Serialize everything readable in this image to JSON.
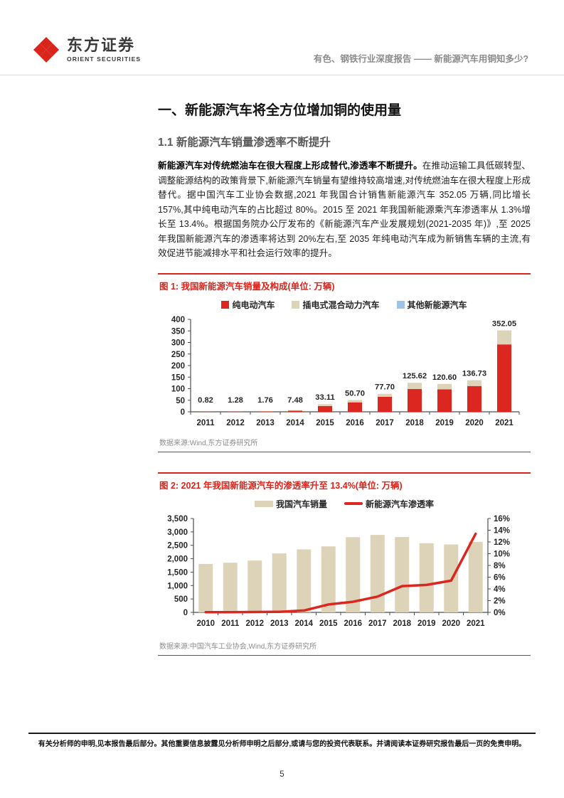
{
  "header": {
    "logo_cn": "东方证券",
    "logo_en": "ORIENT SECURITIES",
    "report_label": "有色、钢铁行业深度报告 —— 新能源汽车用铜知多少?"
  },
  "content": {
    "section_title": "一、新能源汽车将全方位增加铜的使用量",
    "subsection_title": "1.1 新能源汽车销量渗透率不断提升",
    "paragraph_lead": "新能源汽车对传统燃油车在很大程度上形成替代,渗透率不断提升。",
    "paragraph_rest": "在推动运输工具低碳转型、调整能源结构的政策背景下,新能源汽车销量有望维持较高增速,对传统燃油车在很大程度上形成替代。据中国汽车工业协会数据,2021 年我国合计销售新能源汽车 352.05 万辆,同比增长 157%,其中纯电动汽车的占比超过 80%。2015 至 2021 年我国新能源乘汽车渗透率从 1.3%增长至 13.4%。根据国务院办公厅发布的《新能源汽车产业发展规划(2021-2035 年)》,至 2025 年我国新能源汽车的渗透率将达到 20%左右,至 2035 年纯电动汽车成为新销售车辆的主流,有效促进节能减排水平和社会运行效率的提升。"
  },
  "figure1": {
    "title": "图 1: 我国新能源汽车销量及构成(单位: 万辆)",
    "source": "数据来源:Wind,东方证券研究所"
  },
  "figure2": {
    "title": "图 2: 2021 年我国新能源汽车的渗透率升至 13.4%(单位: 万辆)",
    "source": "数据来源:中国汽车工业协会,Wind,东方证券研究所"
  },
  "footer": {
    "disclaimer": "有关分析师的申明,见本报告最后部分。其他重要信息披露见分析师申明之后部分,或请与您的投资代表联系。并请阅读本证券研究报告最后一页的免责申明。",
    "page_number": "5"
  },
  "colors": {
    "accent_red": "#d9251c",
    "bar_red": "#dc2620",
    "bar_tan": "#ddd3b8",
    "bar_blue": "#9dc3e6"
  },
  "chart_data": [
    {
      "type": "bar",
      "stacked": true,
      "title": "图 1: 我国新能源汽车销量及构成(单位: 万辆)",
      "unit": "万辆",
      "categories": [
        "2011",
        "2012",
        "2013",
        "2014",
        "2015",
        "2016",
        "2017",
        "2018",
        "2019",
        "2020",
        "2021"
      ],
      "series": [
        {
          "name": "纯电动汽车",
          "color": "#dc2620",
          "values": [
            0.6,
            1.0,
            1.45,
            4.5,
            24.75,
            40.9,
            65.2,
            98.4,
            97.2,
            111.5,
            291.6
          ]
        },
        {
          "name": "插电式混合动力汽车",
          "color": "#ddd3b8",
          "values": [
            0.22,
            0.28,
            0.31,
            2.98,
            8.36,
            9.8,
            12.5,
            27.22,
            23.4,
            25.23,
            60.45
          ]
        },
        {
          "name": "其他新能源汽车",
          "color": "#9dc3e6",
          "values": [
            0,
            0,
            0,
            0,
            0,
            0,
            0,
            0,
            0,
            0,
            0
          ]
        }
      ],
      "total_labels": [
        "0.82",
        "1.28",
        "1.76",
        "7.48",
        "33.11",
        "50.70",
        "77.70",
        "125.62",
        "120.60",
        "136.73",
        "352.05"
      ],
      "ylim": [
        0,
        400
      ],
      "ytick_step": 50,
      "legend_position": "top",
      "grid": false
    },
    {
      "type": "bar+line",
      "title": "图 2: 2021 年我国新能源汽车的渗透率升至 13.4%(单位: 万辆)",
      "unit": "万辆",
      "categories": [
        "2010",
        "2011",
        "2012",
        "2013",
        "2014",
        "2015",
        "2016",
        "2017",
        "2018",
        "2019",
        "2020",
        "2021"
      ],
      "bar_series": {
        "name": "我国汽车销量",
        "color": "#ddd3b8",
        "values": [
          1806,
          1851,
          1931,
          2198,
          2349,
          2460,
          2803,
          2888,
          2808,
          2577,
          2531,
          2628
        ]
      },
      "line_series": {
        "name": "新能源汽车渗透率",
        "color": "#dc2620",
        "values": [
          0.02,
          0.04,
          0.06,
          0.1,
          0.32,
          1.35,
          1.81,
          2.69,
          4.47,
          4.68,
          5.4,
          13.4
        ]
      },
      "ylim_left": [
        0,
        3500
      ],
      "ytick_step_left": 500,
      "ylim_right": [
        0,
        16
      ],
      "ytick_step_right": 2,
      "legend_position": "top",
      "grid": false
    }
  ]
}
